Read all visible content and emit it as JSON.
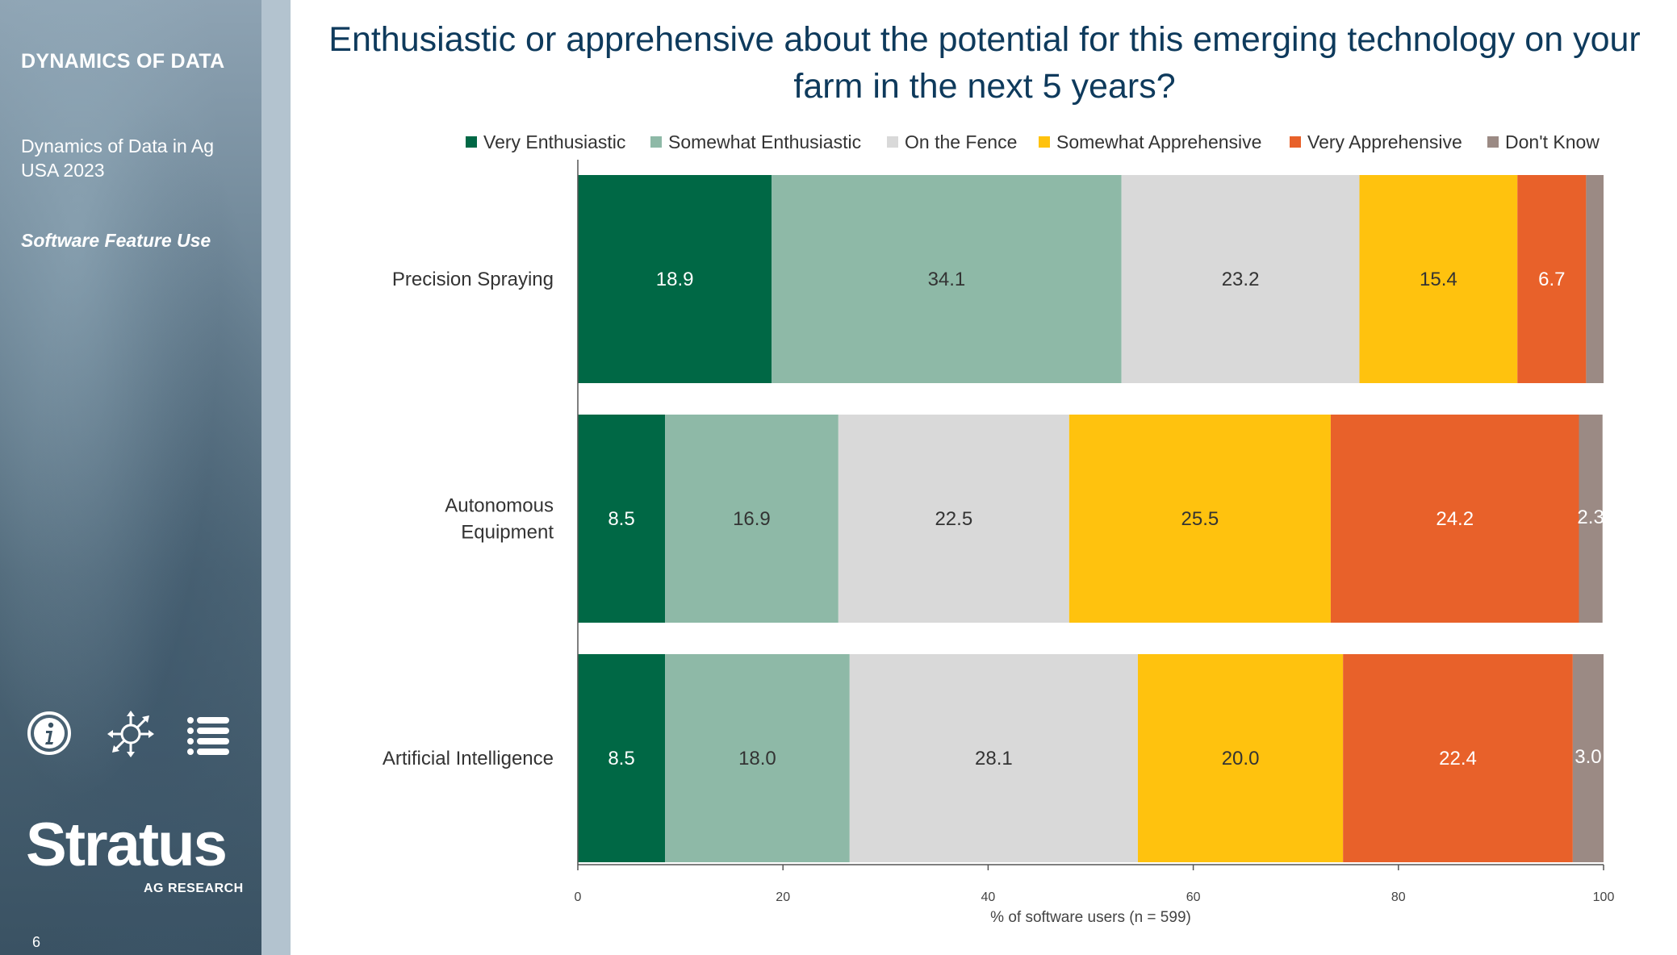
{
  "sidebar": {
    "brand": "DYNAMICS OF DATA",
    "report": "Dynamics of Data in Ag USA 2023",
    "section": "Software Feature Use",
    "logo_main": "Stratus",
    "logo_sub": "AG RESEARCH",
    "page_number": "6",
    "icons": [
      "info-icon",
      "explore-icon",
      "list-icon"
    ]
  },
  "colors": {
    "title": "#0e3a5c",
    "very_enthusiastic": "#006845",
    "somewhat_enthusiastic": "#8eb9a7",
    "on_the_fence": "#d9d9d9",
    "somewhat_apprehensive": "#ffc20e",
    "very_apprehensive": "#e8612a",
    "dont_know": "#9b8a84"
  },
  "chart_data": {
    "type": "bar",
    "orientation": "horizontal",
    "stacked": true,
    "title": "Enthusiastic or apprehensive about the potential for this emerging technology on your farm in the next 5 years?",
    "xlabel": "% of software users (n = 599)",
    "ylabel": "",
    "xlim": [
      0,
      100
    ],
    "xticks": [
      0,
      20,
      40,
      60,
      80,
      100
    ],
    "grid": false,
    "legend_position": "top",
    "categories": [
      [
        "Precision Spraying"
      ],
      [
        "Autonomous",
        "Equipment"
      ],
      [
        "Artificial Intelligence"
      ]
    ],
    "series": [
      {
        "name": "Very Enthusiastic",
        "color": "#006845",
        "text_color": "#ffffff",
        "values": [
          18.9,
          8.5,
          8.5
        ]
      },
      {
        "name": "Somewhat Enthusiastic",
        "color": "#8eb9a7",
        "text_color": "#333333",
        "values": [
          34.1,
          16.9,
          18.0
        ]
      },
      {
        "name": "On the Fence",
        "color": "#d9d9d9",
        "text_color": "#333333",
        "values": [
          23.2,
          22.5,
          28.1
        ]
      },
      {
        "name": "Somewhat Apprehensive",
        "color": "#ffc20e",
        "text_color": "#333333",
        "values": [
          15.4,
          25.5,
          20.0
        ]
      },
      {
        "name": "Very Apprehensive",
        "color": "#e8612a",
        "text_color": "#ffffff",
        "values": [
          6.7,
          24.2,
          22.4
        ]
      },
      {
        "name": "Don't Know",
        "color": "#9b8a84",
        "text_color": "#ffffff",
        "values": [
          1.7,
          2.3,
          3.0
        ]
      }
    ],
    "data_labels": [
      [
        "18.9",
        "8.5",
        "8.5"
      ],
      [
        "34.1",
        "16.9",
        "18.0"
      ],
      [
        "23.2",
        "22.5",
        "28.1"
      ],
      [
        "15.4",
        "25.5",
        "20.0"
      ],
      [
        "6.7",
        "24.2",
        "22.4"
      ],
      [
        "",
        "2.3",
        "3.0"
      ]
    ]
  }
}
